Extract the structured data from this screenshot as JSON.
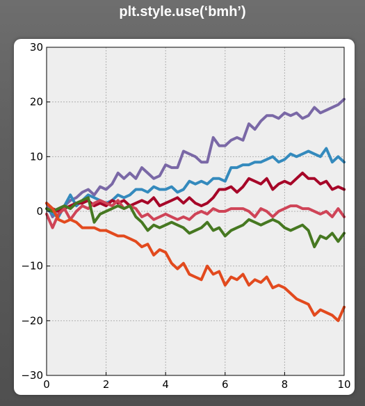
{
  "title": "plt.style.use(‘bmh’)",
  "colors": {
    "plot_background": "#eeeeee",
    "grid": "#b0b0b0"
  },
  "chart_data": {
    "type": "line",
    "title": "",
    "xlabel": "",
    "ylabel": "",
    "xlim": [
      0,
      10
    ],
    "ylim": [
      -30,
      30
    ],
    "grid": true,
    "legend": "none",
    "xticks": [
      0,
      2,
      4,
      6,
      8,
      10
    ],
    "yticks": [
      -30,
      -20,
      -10,
      0,
      10,
      20,
      30
    ],
    "xtick_labels": [
      "0",
      "2",
      "4",
      "6",
      "8",
      "10"
    ],
    "ytick_labels": [
      "−30",
      "−20",
      "−10",
      "0",
      "10",
      "20",
      "30"
    ],
    "series": [
      {
        "color": "#7a68a6",
        "x": [
          0,
          0.2,
          0.4,
          0.6,
          0.8,
          1.0,
          1.2,
          1.4,
          1.6,
          1.8,
          2.0,
          2.2,
          2.4,
          2.6,
          2.8,
          3.0,
          3.2,
          3.4,
          3.6,
          3.8,
          4.0,
          4.2,
          4.4,
          4.6,
          4.8,
          5.0,
          5.2,
          5.4,
          5.6,
          5.8,
          6.0,
          6.2,
          6.4,
          6.6,
          6.8,
          7.0,
          7.2,
          7.4,
          7.6,
          7.8,
          8.0,
          8.2,
          8.4,
          8.6,
          8.8,
          9.0,
          9.2,
          9.4,
          9.6,
          9.8,
          10.0
        ],
        "values": [
          1.5,
          -1.0,
          0.5,
          1.0,
          2.0,
          2.5,
          3.5,
          4.0,
          3.0,
          4.5,
          4.0,
          5.0,
          7.0,
          6.0,
          7.0,
          6.0,
          8.0,
          7.0,
          6.0,
          6.5,
          8.5,
          8.0,
          8.0,
          11.0,
          10.5,
          10.0,
          9.0,
          9.0,
          13.5,
          12.0,
          12.0,
          13.0,
          13.5,
          13.0,
          16.0,
          15.0,
          16.5,
          17.5,
          17.5,
          17.0,
          18.0,
          17.5,
          18.0,
          17.0,
          17.5,
          19.0,
          18.0,
          18.5,
          19.0,
          19.5,
          20.5
        ]
      },
      {
        "color": "#348abd",
        "x": [
          0,
          0.2,
          0.4,
          0.6,
          0.8,
          1.0,
          1.2,
          1.4,
          1.6,
          1.8,
          2.0,
          2.2,
          2.4,
          2.6,
          2.8,
          3.0,
          3.2,
          3.4,
          3.6,
          3.8,
          4.0,
          4.2,
          4.4,
          4.6,
          4.8,
          5.0,
          5.2,
          5.4,
          5.6,
          5.8,
          6.0,
          6.2,
          6.4,
          6.6,
          6.8,
          7.0,
          7.2,
          7.4,
          7.6,
          7.8,
          8.0,
          8.2,
          8.4,
          8.6,
          8.8,
          9.0,
          9.2,
          9.4,
          9.6,
          9.8,
          10.0
        ],
        "values": [
          0.5,
          -0.5,
          -1.0,
          1.0,
          3.0,
          1.0,
          2.0,
          3.0,
          2.5,
          2.0,
          1.5,
          2.0,
          3.0,
          2.5,
          3.0,
          4.0,
          4.0,
          3.5,
          4.5,
          4.0,
          4.0,
          4.5,
          3.5,
          4.0,
          5.5,
          5.0,
          5.5,
          5.0,
          6.0,
          6.0,
          5.5,
          8.0,
          8.0,
          8.5,
          8.5,
          9.0,
          9.0,
          9.5,
          10.0,
          9.0,
          9.5,
          10.5,
          10.0,
          10.5,
          11.0,
          10.5,
          10.0,
          11.5,
          9.0,
          10.0,
          9.0
        ]
      },
      {
        "color": "#a60628",
        "x": [
          0,
          0.2,
          0.4,
          0.6,
          0.8,
          1.0,
          1.2,
          1.4,
          1.6,
          1.8,
          2.0,
          2.2,
          2.4,
          2.6,
          2.8,
          3.0,
          3.2,
          3.4,
          3.6,
          3.8,
          4.0,
          4.2,
          4.4,
          4.6,
          4.8,
          5.0,
          5.2,
          5.4,
          5.6,
          5.8,
          6.0,
          6.2,
          6.4,
          6.6,
          6.8,
          7.0,
          7.2,
          7.4,
          7.6,
          7.8,
          8.0,
          8.2,
          8.4,
          8.6,
          8.8,
          9.0,
          9.2,
          9.4,
          9.6,
          9.8,
          10.0
        ],
        "values": [
          1.5,
          0.5,
          0.0,
          0.5,
          1.0,
          1.5,
          1.5,
          2.0,
          1.0,
          1.5,
          1.0,
          2.0,
          1.5,
          2.0,
          1.0,
          1.5,
          2.0,
          1.5,
          2.5,
          1.0,
          1.5,
          2.0,
          2.5,
          1.5,
          2.5,
          1.5,
          1.0,
          1.5,
          2.5,
          4.0,
          4.0,
          4.5,
          3.5,
          4.5,
          6.0,
          5.5,
          5.0,
          6.0,
          4.0,
          5.0,
          5.5,
          5.0,
          6.0,
          7.0,
          6.0,
          6.0,
          5.0,
          5.5,
          4.0,
          4.5,
          4.0
        ]
      },
      {
        "color": "#cf4457",
        "x": [
          0,
          0.2,
          0.4,
          0.6,
          0.8,
          1.0,
          1.2,
          1.4,
          1.6,
          1.8,
          2.0,
          2.2,
          2.4,
          2.6,
          2.8,
          3.0,
          3.2,
          3.4,
          3.6,
          3.8,
          4.0,
          4.2,
          4.4,
          4.6,
          4.8,
          5.0,
          5.2,
          5.4,
          5.6,
          5.8,
          6.0,
          6.2,
          6.4,
          6.6,
          6.8,
          7.0,
          7.2,
          7.4,
          7.6,
          7.8,
          8.0,
          8.2,
          8.4,
          8.6,
          8.8,
          9.0,
          9.2,
          9.4,
          9.6,
          9.8,
          10.0
        ],
        "values": [
          -0.5,
          -3.0,
          -0.5,
          0.5,
          -1.5,
          0.0,
          1.0,
          0.5,
          1.5,
          2.0,
          1.5,
          1.0,
          2.0,
          0.5,
          1.0,
          0.5,
          -1.0,
          -0.5,
          -1.5,
          -1.0,
          -0.5,
          -1.0,
          -1.5,
          -1.0,
          -1.5,
          -0.5,
          0.0,
          -0.5,
          0.5,
          0.0,
          0.0,
          0.5,
          0.5,
          0.5,
          0.0,
          -1.0,
          0.5,
          0.0,
          -1.0,
          0.0,
          0.5,
          1.0,
          1.0,
          0.5,
          0.5,
          0.0,
          -0.5,
          0.0,
          -1.0,
          0.5,
          -1.0
        ]
      },
      {
        "color": "#467821",
        "x": [
          0,
          0.2,
          0.4,
          0.6,
          0.8,
          1.0,
          1.2,
          1.4,
          1.6,
          1.8,
          2.0,
          2.2,
          2.4,
          2.6,
          2.8,
          3.0,
          3.2,
          3.4,
          3.6,
          3.8,
          4.0,
          4.2,
          4.4,
          4.6,
          4.8,
          5.0,
          5.2,
          5.4,
          5.6,
          5.8,
          6.0,
          6.2,
          6.4,
          6.6,
          6.8,
          7.0,
          7.2,
          7.4,
          7.6,
          7.8,
          8.0,
          8.2,
          8.4,
          8.6,
          8.8,
          9.0,
          9.2,
          9.4,
          9.6,
          9.8,
          10.0
        ],
        "values": [
          0.5,
          0.0,
          0.5,
          1.0,
          0.5,
          1.5,
          2.0,
          2.5,
          -2.0,
          -0.5,
          0.0,
          0.5,
          1.0,
          0.5,
          1.0,
          -1.0,
          -2.0,
          -3.5,
          -2.5,
          -3.0,
          -2.5,
          -2.0,
          -2.5,
          -3.0,
          -4.0,
          -3.5,
          -3.0,
          -2.0,
          -3.5,
          -3.0,
          -4.5,
          -3.5,
          -3.0,
          -2.5,
          -1.5,
          -2.0,
          -2.5,
          -2.0,
          -1.5,
          -2.0,
          -3.0,
          -3.5,
          -3.0,
          -2.5,
          -3.5,
          -6.5,
          -4.5,
          -5.0,
          -4.0,
          -5.5,
          -4.0
        ]
      },
      {
        "color": "#e24a1e",
        "x": [
          0,
          0.2,
          0.4,
          0.6,
          0.8,
          1.0,
          1.2,
          1.4,
          1.6,
          1.8,
          2.0,
          2.2,
          2.4,
          2.6,
          2.8,
          3.0,
          3.2,
          3.4,
          3.6,
          3.8,
          4.0,
          4.2,
          4.4,
          4.6,
          4.8,
          5.0,
          5.2,
          5.4,
          5.6,
          5.8,
          6.0,
          6.2,
          6.4,
          6.6,
          6.8,
          7.0,
          7.2,
          7.4,
          7.6,
          7.8,
          8.0,
          8.2,
          8.4,
          8.6,
          8.8,
          9.0,
          9.2,
          9.4,
          9.6,
          9.8,
          10.0
        ],
        "values": [
          1.5,
          0.5,
          -1.5,
          -2.0,
          -1.5,
          -2.0,
          -3.0,
          -3.0,
          -3.0,
          -3.5,
          -3.5,
          -4.0,
          -4.5,
          -4.5,
          -5.0,
          -5.5,
          -6.5,
          -6.0,
          -8.0,
          -7.0,
          -7.5,
          -9.5,
          -10.5,
          -9.5,
          -11.5,
          -12.0,
          -12.5,
          -10.0,
          -11.5,
          -11.0,
          -13.5,
          -12.0,
          -12.5,
          -11.5,
          -13.5,
          -12.5,
          -13.0,
          -12.0,
          -14.0,
          -13.5,
          -14.0,
          -15.0,
          -16.0,
          -16.5,
          -17.0,
          -19.0,
          -18.0,
          -18.5,
          -19.0,
          -20.0,
          -17.5
        ]
      }
    ]
  }
}
